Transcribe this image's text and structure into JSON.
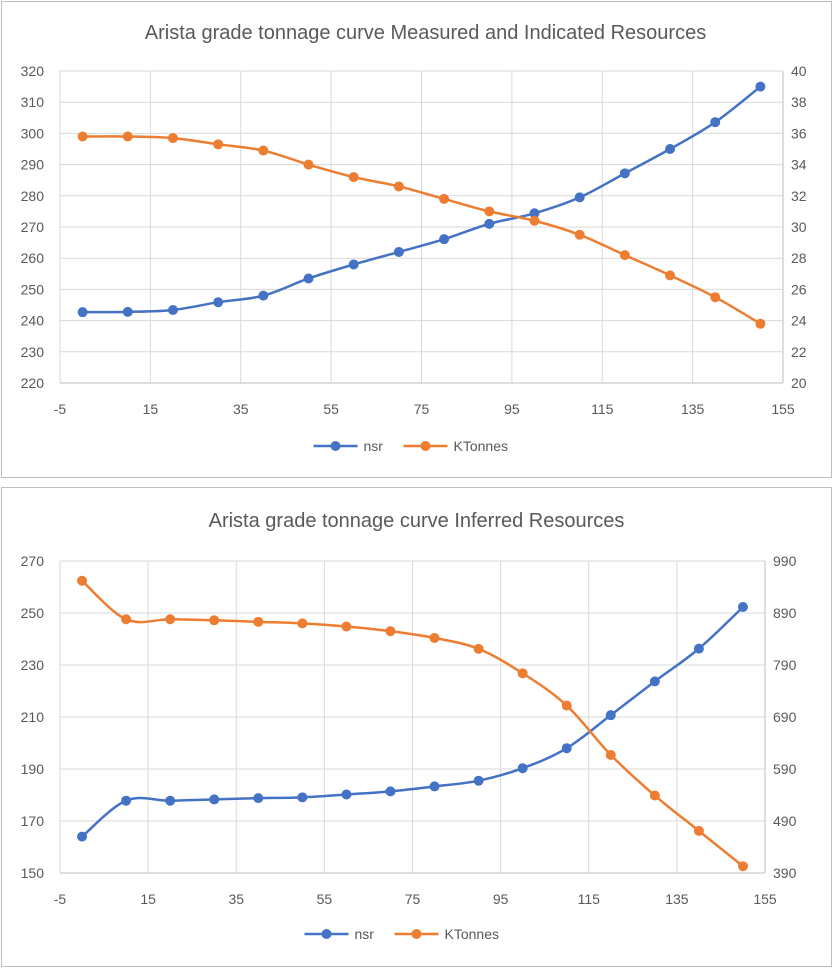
{
  "colors": {
    "nsr": "#4472c4",
    "ktonnes": "#ed7d31",
    "grid": "#d9d9d9",
    "axis": "#bfbfbf",
    "text": "#595959"
  },
  "chart_data": [
    {
      "type": "line",
      "title": "Arista grade tonnage curve Measured and Indicated Resources",
      "x": [
        0,
        10,
        20,
        30,
        40,
        50,
        60,
        70,
        80,
        90,
        100,
        110,
        120,
        130,
        140,
        150
      ],
      "xlim": [
        -5,
        155
      ],
      "xticks": [
        -5,
        15,
        35,
        55,
        75,
        95,
        115,
        135,
        155
      ],
      "ylim": [
        220,
        320
      ],
      "yticks": [
        220,
        230,
        240,
        250,
        260,
        270,
        280,
        290,
        300,
        310,
        320
      ],
      "y2lim": [
        20,
        40
      ],
      "y2ticks": [
        20,
        22,
        24,
        26,
        28,
        30,
        32,
        34,
        36,
        38,
        40
      ],
      "grid": true,
      "legend": "bottom",
      "series": [
        {
          "name": "nsr",
          "axis": "left",
          "values": [
            242.7,
            242.8,
            243.4,
            245.9,
            248.0,
            253.5,
            258.0,
            262.0,
            266.1,
            271.0,
            274.4,
            279.5,
            287.2,
            295.0,
            303.6,
            315.0
          ]
        },
        {
          "name": "KTonnes",
          "axis": "right",
          "values": [
            35.8,
            35.8,
            35.7,
            35.3,
            34.9,
            34.0,
            33.2,
            32.6,
            31.8,
            31.0,
            30.4,
            29.5,
            28.2,
            26.9,
            25.5,
            23.8
          ]
        }
      ]
    },
    {
      "type": "line",
      "title": "Arista grade tonnage curve Inferred Resources",
      "x": [
        0,
        10,
        20,
        30,
        40,
        50,
        60,
        70,
        80,
        90,
        100,
        110,
        120,
        130,
        140,
        150
      ],
      "xlim": [
        -5,
        155
      ],
      "xticks": [
        -5,
        15,
        35,
        55,
        75,
        95,
        115,
        135,
        155
      ],
      "ylim": [
        150,
        270
      ],
      "yticks": [
        150,
        170,
        190,
        210,
        230,
        250,
        270
      ],
      "y2lim": [
        390,
        990
      ],
      "y2ticks": [
        390,
        490,
        590,
        690,
        790,
        890,
        990
      ],
      "grid": true,
      "legend": "bottom",
      "series": [
        {
          "name": "nsr",
          "axis": "left",
          "values": [
            164.0,
            177.8,
            177.8,
            178.3,
            178.8,
            179.1,
            180.2,
            181.4,
            183.3,
            185.5,
            190.3,
            198.0,
            210.7,
            223.7,
            236.3,
            252.3
          ]
        },
        {
          "name": "KTonnes",
          "axis": "right",
          "values": [
            952,
            878,
            878,
            876,
            873,
            870,
            864,
            855,
            842,
            821,
            774,
            712,
            617,
            539,
            471,
            403
          ]
        }
      ]
    }
  ]
}
